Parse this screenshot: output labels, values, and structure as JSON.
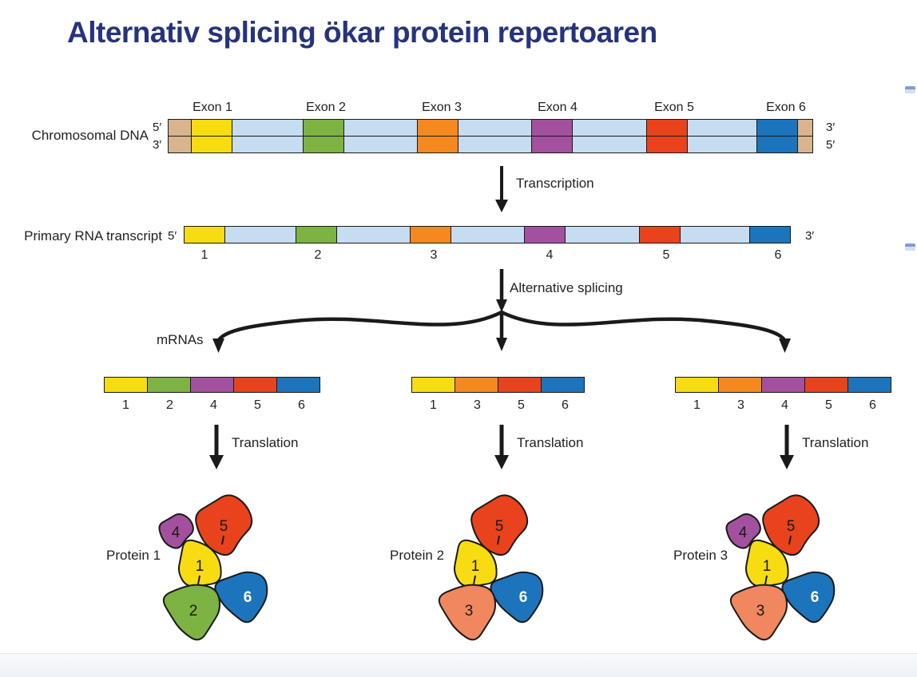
{
  "title": "Alternativ splicing ökar protein repertoaren",
  "colors": {
    "title": "#26337C",
    "exon1": "#F7DC11",
    "exon2": "#7CB342",
    "exon3": "#F5891F",
    "exon4": "#A3519E",
    "exon5": "#E8431C",
    "exon6": "#1C75BC",
    "intron": "#C6DCF0",
    "cap": "#D9B48F",
    "salmon": "#F0875F",
    "outline": "#1A1A1A"
  },
  "dna": {
    "label": "Chromosomal DNA",
    "exon_labels": [
      "Exon 1",
      "Exon 2",
      "Exon 3",
      "Exon 4",
      "Exon 5",
      "Exon 6"
    ],
    "left_top": "5′",
    "left_bottom": "3′",
    "right_top": "3′",
    "right_bottom": "5′"
  },
  "transcription": {
    "label": "Transcription"
  },
  "rna": {
    "label": "Primary RNA transcript",
    "left": "5′",
    "right": "3′",
    "numbers": [
      "1",
      "2",
      "3",
      "4",
      "5",
      "6"
    ]
  },
  "splicing": {
    "label": "Alternative splicing"
  },
  "mrnas_label": "mRNAs",
  "mrnas": [
    {
      "exons": [
        "1",
        "2",
        "4",
        "5",
        "6"
      ]
    },
    {
      "exons": [
        "1",
        "3",
        "5",
        "6"
      ]
    },
    {
      "exons": [
        "1",
        "3",
        "4",
        "5",
        "6"
      ]
    }
  ],
  "translation_label": "Translation",
  "proteins": [
    {
      "label": "Protein 1",
      "subunits": [
        "4",
        "5",
        "1",
        "2",
        "6"
      ]
    },
    {
      "label": "Protein 2",
      "subunits": [
        "5",
        "1",
        "3",
        "6"
      ]
    },
    {
      "label": "Protein 3",
      "subunits": [
        "4",
        "5",
        "1",
        "3",
        "6"
      ]
    }
  ]
}
